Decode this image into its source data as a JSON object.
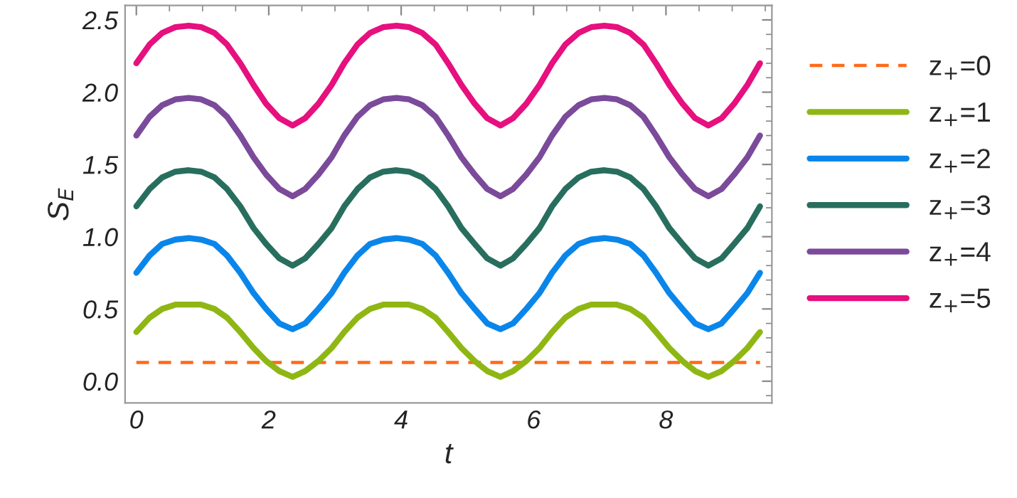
{
  "chart_data": {
    "type": "line",
    "xlabel": "t",
    "ylabel": "S$_{E}$",
    "xlim": [
      -0.17,
      9.6
    ],
    "ylim": [
      -0.15,
      2.6
    ],
    "xticks": [
      0,
      2,
      4,
      6,
      8
    ],
    "yticks": [
      {
        "value": 0,
        "label": "0.0"
      },
      {
        "value": 0.5,
        "label": "0.5"
      },
      {
        "value": 1,
        "label": "1.0"
      },
      {
        "value": 1.5,
        "label": "1.5"
      },
      {
        "value": 2,
        "label": "2.0"
      },
      {
        "value": 2.5,
        "label": "2.5"
      }
    ],
    "x": [
      0,
      0.2,
      0.39,
      0.59,
      0.79,
      0.98,
      1.18,
      1.37,
      1.57,
      1.77,
      1.96,
      2.16,
      2.36,
      2.55,
      2.75,
      2.95,
      3.14,
      3.34,
      3.53,
      3.73,
      3.93,
      4.12,
      4.32,
      4.52,
      4.71,
      4.91,
      5.11,
      5.3,
      5.5,
      5.69,
      5.89,
      6.09,
      6.28,
      6.48,
      6.68,
      6.87,
      7.07,
      7.26,
      7.46,
      7.66,
      7.85,
      8.05,
      8.25,
      8.44,
      8.64,
      8.84,
      9.03,
      9.23,
      9.42
    ],
    "legend": "right",
    "grid": false,
    "series": [
      {
        "name": "z$_{+}$=0",
        "color": "#ff6a1a",
        "line_style": "dashed",
        "x": [
          0,
          9.42
        ],
        "values": [
          0.13,
          0.13
        ]
      },
      {
        "name": "z$_{+}$=1",
        "color": "#8fb714",
        "values": [
          0.34,
          0.44,
          0.5,
          0.53,
          0.53,
          0.53,
          0.5,
          0.44,
          0.34,
          0.23,
          0.14,
          0.07,
          0.03,
          0.07,
          0.14,
          0.23,
          0.34,
          0.44,
          0.5,
          0.53,
          0.53,
          0.53,
          0.5,
          0.44,
          0.34,
          0.23,
          0.14,
          0.07,
          0.03,
          0.07,
          0.14,
          0.23,
          0.34,
          0.44,
          0.5,
          0.53,
          0.53,
          0.53,
          0.5,
          0.44,
          0.34,
          0.23,
          0.14,
          0.07,
          0.03,
          0.07,
          0.14,
          0.23,
          0.34
        ]
      },
      {
        "name": "z$_{+}$=2",
        "color": "#0a86ea",
        "values": [
          0.75,
          0.87,
          0.95,
          0.98,
          0.99,
          0.98,
          0.95,
          0.87,
          0.75,
          0.61,
          0.5,
          0.4,
          0.36,
          0.4,
          0.5,
          0.61,
          0.75,
          0.87,
          0.95,
          0.98,
          0.99,
          0.98,
          0.95,
          0.87,
          0.75,
          0.61,
          0.5,
          0.4,
          0.36,
          0.4,
          0.5,
          0.61,
          0.75,
          0.87,
          0.95,
          0.98,
          0.99,
          0.98,
          0.95,
          0.87,
          0.75,
          0.61,
          0.5,
          0.4,
          0.36,
          0.4,
          0.5,
          0.61,
          0.75
        ]
      },
      {
        "name": "z$_{+}$=3",
        "color": "#286e5e",
        "values": [
          1.21,
          1.33,
          1.41,
          1.45,
          1.46,
          1.45,
          1.41,
          1.33,
          1.21,
          1.06,
          0.95,
          0.85,
          0.8,
          0.85,
          0.95,
          1.06,
          1.21,
          1.33,
          1.41,
          1.45,
          1.46,
          1.45,
          1.41,
          1.33,
          1.21,
          1.06,
          0.95,
          0.85,
          0.8,
          0.85,
          0.95,
          1.06,
          1.21,
          1.33,
          1.41,
          1.45,
          1.46,
          1.45,
          1.41,
          1.33,
          1.21,
          1.06,
          0.95,
          0.85,
          0.8,
          0.85,
          0.95,
          1.06,
          1.21
        ]
      },
      {
        "name": "z$_{+}$=4",
        "color": "#7b4a9a",
        "values": [
          1.7,
          1.83,
          1.91,
          1.95,
          1.96,
          1.95,
          1.91,
          1.83,
          1.7,
          1.55,
          1.43,
          1.33,
          1.28,
          1.33,
          1.43,
          1.55,
          1.7,
          1.83,
          1.91,
          1.95,
          1.96,
          1.95,
          1.91,
          1.83,
          1.7,
          1.55,
          1.43,
          1.33,
          1.28,
          1.33,
          1.43,
          1.55,
          1.7,
          1.83,
          1.91,
          1.95,
          1.96,
          1.95,
          1.91,
          1.83,
          1.7,
          1.55,
          1.43,
          1.33,
          1.28,
          1.33,
          1.43,
          1.55,
          1.7
        ]
      },
      {
        "name": "z$_{+}$=5",
        "color": "#e6107e",
        "values": [
          2.2,
          2.33,
          2.41,
          2.45,
          2.46,
          2.45,
          2.41,
          2.33,
          2.2,
          2.05,
          1.92,
          1.82,
          1.77,
          1.82,
          1.92,
          2.05,
          2.2,
          2.33,
          2.41,
          2.45,
          2.46,
          2.45,
          2.41,
          2.33,
          2.2,
          2.05,
          1.92,
          1.82,
          1.77,
          1.82,
          1.92,
          2.05,
          2.2,
          2.33,
          2.41,
          2.45,
          2.46,
          2.45,
          2.41,
          2.33,
          2.2,
          2.05,
          1.92,
          1.82,
          1.77,
          1.82,
          1.92,
          2.05,
          2.2
        ]
      }
    ]
  }
}
